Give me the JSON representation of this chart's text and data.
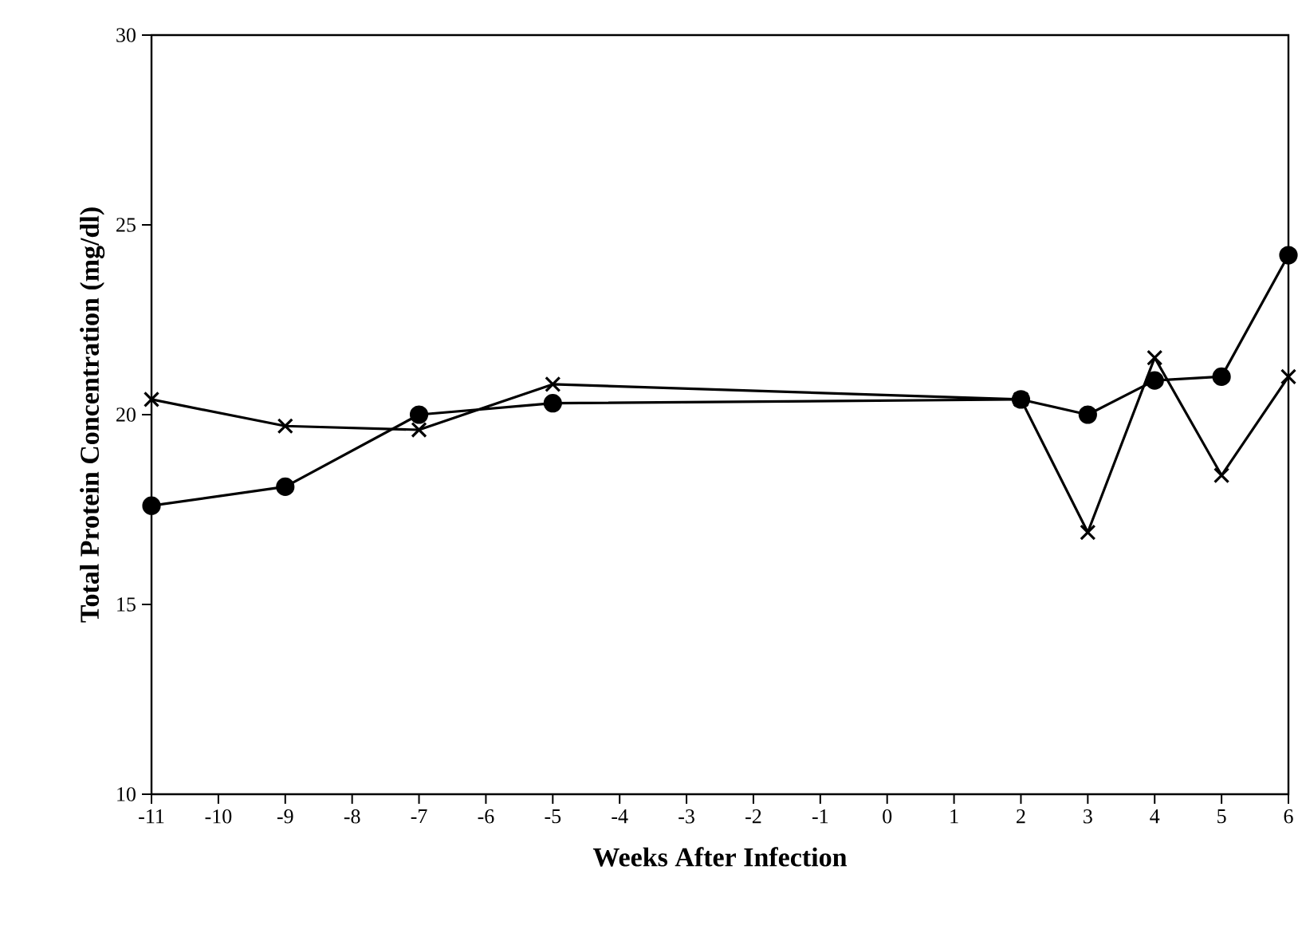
{
  "chart_data": {
    "type": "line",
    "xlabel": "Weeks After Infection",
    "ylabel": "Total Protein Concentration (mg/dl)",
    "x": [
      -11,
      -9,
      -7,
      -5,
      2,
      3,
      4,
      5,
      6
    ],
    "series": [
      {
        "color": "#000000",
        "marker": "circle",
        "values": [
          17.6,
          18.1,
          20.0,
          20.3,
          20.4,
          20.0,
          20.9,
          21.0,
          24.2
        ]
      },
      {
        "color": "#000000",
        "marker": "cross",
        "values": [
          20.4,
          19.7,
          19.6,
          20.8,
          20.4,
          16.9,
          21.5,
          18.4,
          21.0
        ]
      }
    ],
    "xlim": [
      -11,
      6
    ],
    "xticks": [
      -11,
      -10,
      -9,
      -8,
      -7,
      -6,
      -5,
      -4,
      -3,
      -2,
      -1,
      0,
      1,
      2,
      3,
      4,
      5,
      6
    ],
    "ylim": [
      10,
      30
    ],
    "yticks": [
      10,
      15,
      20,
      25,
      30
    ],
    "line_style": "solid"
  }
}
